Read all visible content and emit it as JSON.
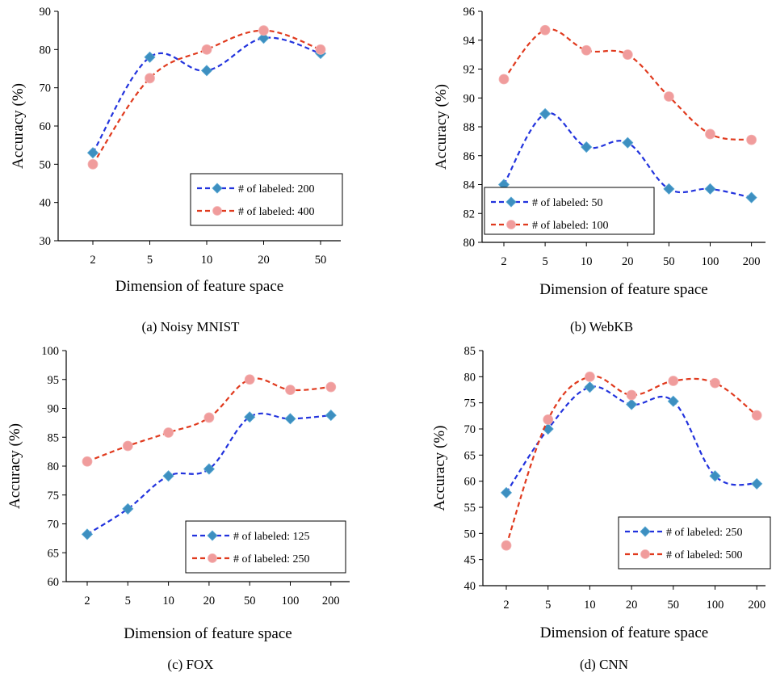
{
  "chart_data": [
    {
      "type": "line",
      "caption": "(a) Noisy MNIST",
      "xlabel": "Dimension of feature space",
      "ylabel": "Accuracy (%)",
      "categories": [
        "2",
        "5",
        "10",
        "20",
        "50"
      ],
      "ylim": [
        30,
        90
      ],
      "yticks": [
        "30",
        "40",
        "50",
        "60",
        "70",
        "80",
        "90"
      ],
      "legend_position": "bottom-right",
      "series": [
        {
          "name": "# of labeled: 200",
          "color": "#2233dd",
          "marker_color": "#3d8fc0",
          "values": [
            53,
            78,
            74.5,
            83,
            79
          ]
        },
        {
          "name": "# of labeled: 400",
          "color": "#e03a1e",
          "marker_color": "#f09c9c",
          "values": [
            50,
            72.5,
            80,
            85,
            80
          ]
        }
      ]
    },
    {
      "type": "line",
      "caption": "(b) WebKB",
      "xlabel": "Dimension of feature space",
      "ylabel": "Accuracy (%)",
      "categories": [
        "2",
        "5",
        "10",
        "20",
        "50",
        "100",
        "200"
      ],
      "ylim": [
        80,
        96
      ],
      "yticks": [
        "80",
        "82",
        "84",
        "86",
        "88",
        "90",
        "92",
        "94",
        "96"
      ],
      "legend_position": "bottom-left",
      "series": [
        {
          "name": "# of labeled:  50",
          "color": "#2233dd",
          "marker_color": "#3d8fc0",
          "values": [
            84,
            88.9,
            86.6,
            86.9,
            83.7,
            83.7,
            83.1
          ]
        },
        {
          "name": "# of labeled: 100",
          "color": "#e03a1e",
          "marker_color": "#f09c9c",
          "values": [
            91.3,
            94.7,
            93.3,
            93,
            90.1,
            87.5,
            87.1
          ]
        }
      ]
    },
    {
      "type": "line",
      "caption": "(c) FOX",
      "xlabel": "Dimension of feature space",
      "ylabel": "Accuracy (%)",
      "categories": [
        "2",
        "5",
        "10",
        "20",
        "50",
        "100",
        "200"
      ],
      "ylim": [
        60,
        100
      ],
      "yticks": [
        "60",
        "65",
        "70",
        "75",
        "80",
        "85",
        "90",
        "95",
        "100"
      ],
      "legend_position": "bottom-right",
      "series": [
        {
          "name": "# of labeled: 125",
          "color": "#2233dd",
          "marker_color": "#3d8fc0",
          "values": [
            68.2,
            72.6,
            78.3,
            79.5,
            88.5,
            88.2,
            88.8
          ]
        },
        {
          "name": "# of labeled: 250",
          "color": "#e03a1e",
          "marker_color": "#f09c9c",
          "values": [
            80.8,
            83.5,
            85.8,
            88.4,
            95,
            93.2,
            93.7
          ]
        }
      ]
    },
    {
      "type": "line",
      "caption": "(d) CNN",
      "xlabel": "Dimension of feature space",
      "ylabel": "Accuracy (%)",
      "categories": [
        "2",
        "5",
        "10",
        "20",
        "50",
        "100",
        "200"
      ],
      "ylim": [
        40,
        85
      ],
      "yticks": [
        "40",
        "45",
        "50",
        "55",
        "60",
        "65",
        "70",
        "75",
        "80",
        "85"
      ],
      "legend_position": "bottom-right",
      "series": [
        {
          "name": "# of labeled: 250",
          "color": "#2233dd",
          "marker_color": "#3d8fc0",
          "values": [
            57.8,
            70,
            78,
            74.7,
            75.3,
            61,
            59.5
          ]
        },
        {
          "name": "# of labeled: 500",
          "color": "#e03a1e",
          "marker_color": "#f09c9c",
          "values": [
            47.7,
            71.8,
            80,
            76.5,
            79.2,
            78.8,
            72.6
          ]
        }
      ]
    }
  ]
}
